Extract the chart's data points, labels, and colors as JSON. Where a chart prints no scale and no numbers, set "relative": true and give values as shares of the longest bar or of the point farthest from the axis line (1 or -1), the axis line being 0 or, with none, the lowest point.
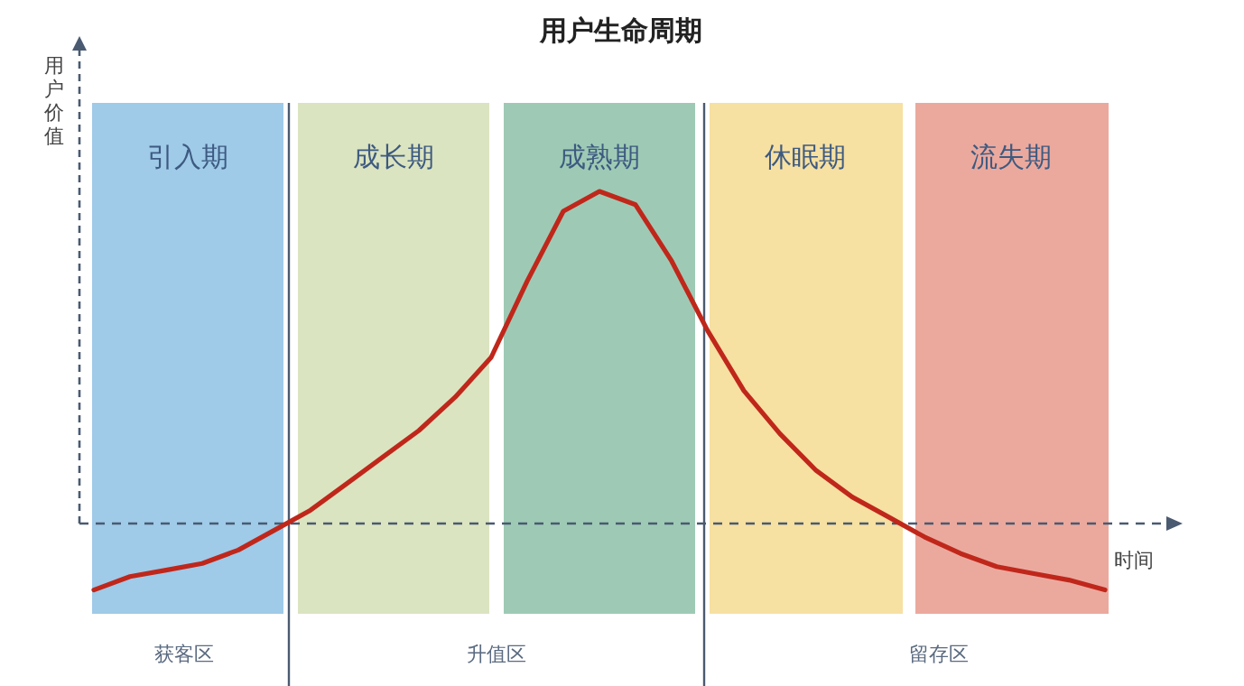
{
  "chart_data": {
    "type": "line",
    "title": "用户生命周期",
    "xlabel": "时间",
    "ylabel": "用户价值",
    "relative": true,
    "categories": [
      null,
      null,
      null,
      null,
      null,
      null,
      null,
      null,
      null,
      null,
      null,
      null,
      null,
      null,
      null,
      null,
      null,
      null,
      null,
      null,
      null,
      null,
      null,
      null,
      null,
      null,
      null,
      null,
      null
    ],
    "series": [
      {
        "color": "#c0271b",
        "values": [
          -0.2,
          -0.16,
          -0.14,
          -0.12,
          -0.08,
          -0.02,
          0.04,
          0.12,
          0.2,
          0.28,
          0.38,
          0.5,
          0.73,
          0.94,
          1,
          0.96,
          0.79,
          0.58,
          0.4,
          0.27,
          0.16,
          0.08,
          0.02,
          -0.04,
          -0.09,
          -0.13,
          -0.15,
          -0.17,
          -0.2
        ]
      }
    ],
    "ref_lines": [
      {
        "axis": "y",
        "value": 0,
        "line_style": "dashed",
        "color": "#4a5a70"
      }
    ],
    "annotations": [
      "引入期",
      "成长期",
      "成熟期",
      "休眠期",
      "流失期",
      "获客区",
      "升值区",
      "留存区"
    ]
  }
}
